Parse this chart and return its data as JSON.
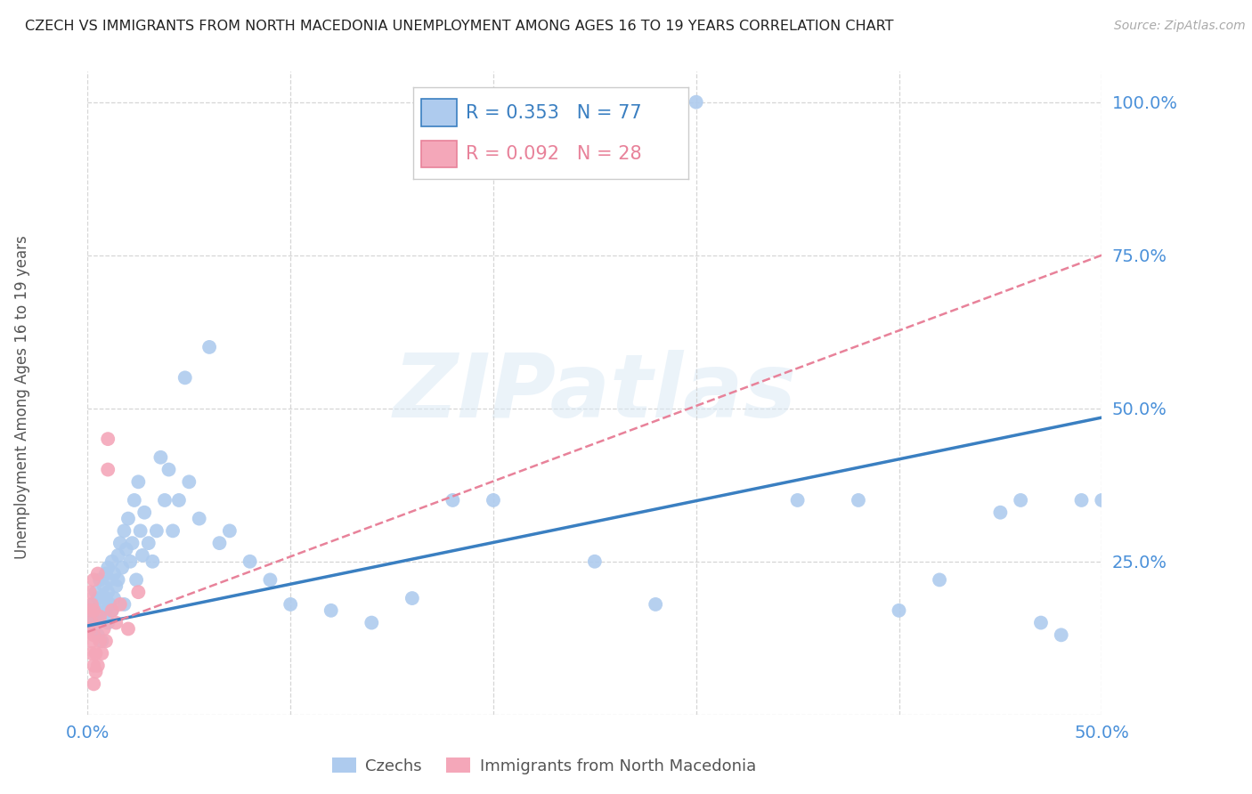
{
  "title": "CZECH VS IMMIGRANTS FROM NORTH MACEDONIA UNEMPLOYMENT AMONG AGES 16 TO 19 YEARS CORRELATION CHART",
  "source": "Source: ZipAtlas.com",
  "ylabel": "Unemployment Among Ages 16 to 19 years",
  "xlim": [
    0.0,
    0.5
  ],
  "ylim": [
    0.0,
    1.05
  ],
  "yticks": [
    0.0,
    0.25,
    0.5,
    0.75,
    1.0
  ],
  "ytick_labels": [
    "",
    "25.0%",
    "50.0%",
    "75.0%",
    "100.0%"
  ],
  "xticks": [
    0.0,
    0.1,
    0.2,
    0.3,
    0.4,
    0.5
  ],
  "xtick_labels": [
    "0.0%",
    "",
    "",
    "",
    "",
    "50.0%"
  ],
  "czech_R": 0.353,
  "czech_N": 77,
  "mac_R": 0.092,
  "mac_N": 28,
  "czech_color": "#aecbee",
  "mac_color": "#f4a7b9",
  "trendline_czech_color": "#3a7fc1",
  "trendline_mac_color": "#e8829a",
  "background_color": "#ffffff",
  "grid_color": "#cccccc",
  "title_color": "#222222",
  "tick_color": "#4a90d9",
  "watermark": "ZIPatlas",
  "czech_x": [
    0.001,
    0.002,
    0.003,
    0.003,
    0.004,
    0.004,
    0.005,
    0.005,
    0.006,
    0.007,
    0.007,
    0.008,
    0.008,
    0.009,
    0.009,
    0.009,
    0.01,
    0.01,
    0.01,
    0.011,
    0.011,
    0.012,
    0.012,
    0.013,
    0.013,
    0.014,
    0.015,
    0.015,
    0.016,
    0.017,
    0.018,
    0.018,
    0.019,
    0.02,
    0.021,
    0.022,
    0.023,
    0.024,
    0.025,
    0.026,
    0.027,
    0.028,
    0.03,
    0.032,
    0.034,
    0.036,
    0.038,
    0.04,
    0.042,
    0.045,
    0.048,
    0.05,
    0.055,
    0.06,
    0.065,
    0.07,
    0.08,
    0.09,
    0.1,
    0.12,
    0.14,
    0.16,
    0.18,
    0.2,
    0.25,
    0.28,
    0.3,
    0.35,
    0.38,
    0.4,
    0.42,
    0.45,
    0.46,
    0.47,
    0.48,
    0.49,
    0.5
  ],
  "czech_y": [
    0.17,
    0.15,
    0.18,
    0.14,
    0.2,
    0.16,
    0.19,
    0.13,
    0.22,
    0.18,
    0.12,
    0.21,
    0.16,
    0.23,
    0.17,
    0.19,
    0.2,
    0.15,
    0.24,
    0.18,
    0.22,
    0.17,
    0.25,
    0.19,
    0.23,
    0.21,
    0.26,
    0.22,
    0.28,
    0.24,
    0.3,
    0.18,
    0.27,
    0.32,
    0.25,
    0.28,
    0.35,
    0.22,
    0.38,
    0.3,
    0.26,
    0.33,
    0.28,
    0.25,
    0.3,
    0.42,
    0.35,
    0.4,
    0.3,
    0.35,
    0.55,
    0.38,
    0.32,
    0.6,
    0.28,
    0.3,
    0.25,
    0.22,
    0.18,
    0.17,
    0.15,
    0.19,
    0.35,
    0.35,
    0.25,
    0.18,
    1.0,
    0.35,
    0.35,
    0.17,
    0.22,
    0.33,
    0.35,
    0.15,
    0.13,
    0.35,
    0.35
  ],
  "mac_x": [
    0.001,
    0.001,
    0.001,
    0.002,
    0.002,
    0.002,
    0.002,
    0.003,
    0.003,
    0.003,
    0.003,
    0.003,
    0.004,
    0.004,
    0.005,
    0.005,
    0.006,
    0.006,
    0.007,
    0.008,
    0.009,
    0.01,
    0.01,
    0.012,
    0.014,
    0.016,
    0.02,
    0.025
  ],
  "mac_y": [
    0.17,
    0.2,
    0.14,
    0.15,
    0.18,
    0.12,
    0.1,
    0.22,
    0.17,
    0.13,
    0.08,
    0.05,
    0.1,
    0.07,
    0.23,
    0.08,
    0.16,
    0.12,
    0.1,
    0.14,
    0.12,
    0.4,
    0.45,
    0.17,
    0.15,
    0.18,
    0.14,
    0.2
  ],
  "czech_trend_x0": 0.0,
  "czech_trend_x1": 0.5,
  "czech_trend_y0": 0.145,
  "czech_trend_y1": 0.485,
  "mac_trend_x0": 0.0,
  "mac_trend_x1": 0.5,
  "mac_trend_y0": 0.135,
  "mac_trend_y1": 0.75
}
